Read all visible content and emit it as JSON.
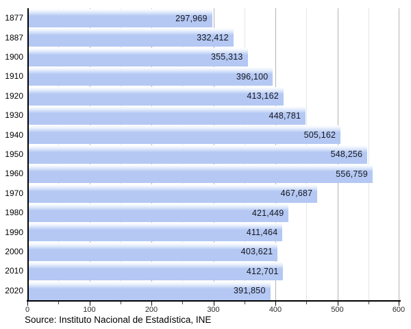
{
  "chart_data": {
    "type": "bar",
    "orientation": "horizontal",
    "title": "",
    "categories": [
      "1877",
      "1887",
      "1900",
      "1910",
      "1920",
      "1930",
      "1940",
      "1950",
      "1960",
      "1970",
      "1980",
      "1990",
      "2000",
      "2010",
      "2020"
    ],
    "values": [
      297969,
      332412,
      355313,
      396100,
      413162,
      448781,
      505162,
      548256,
      556759,
      467687,
      421449,
      411464,
      403621,
      412701,
      391850
    ],
    "value_labels": [
      "297,969",
      "332,412",
      "355,313",
      "396,100",
      "413,162",
      "448,781",
      "505,162",
      "548,256",
      "556,759",
      "467,687",
      "421,449",
      "411,464",
      "403,621",
      "412,701",
      "391,850"
    ],
    "x_axis": {
      "min": 0,
      "max": 600,
      "major_tick_step": 100,
      "minor_tick_step": 50,
      "tick_labels": [
        "0",
        "100",
        "200",
        "300",
        "400",
        "500",
        "600"
      ],
      "value_scale": "axis units are thousands of persons"
    },
    "grid": true,
    "legend": false,
    "source_note": "Source: Instituto Nacional de Estadística, INE",
    "colors": {
      "bar": "#b4c8f3",
      "bar_highlight_top": "#ffffff",
      "major_gridline": "#b3b3b3",
      "minor_gridline": "#e4e4e4",
      "axis": "#000000",
      "value_label_text": "#16161f",
      "tick_label_text": "#2b2b2b"
    }
  }
}
